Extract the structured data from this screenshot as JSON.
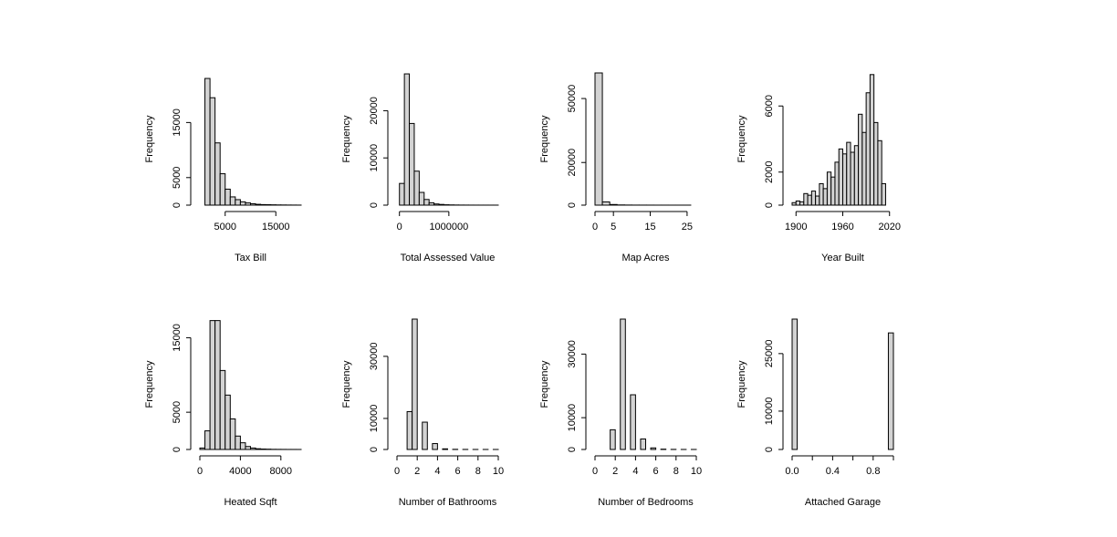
{
  "figure": {
    "background": "#ffffff",
    "bar_fill": "#d3d3d3",
    "bar_stroke": "#000000"
  },
  "chart_data": [
    {
      "type": "bar",
      "xlabel": "Tax Bill",
      "ylabel": "Frequency",
      "xlim": [
        0,
        20000
      ],
      "ylim": [
        0,
        24000
      ],
      "xticks": [
        5000,
        15000
      ],
      "xtick_labels": [
        "5000",
        "15000"
      ],
      "yticks": [
        0,
        5000,
        15000
      ],
      "ytick_labels": [
        "0",
        "5000",
        "15000"
      ],
      "bins": [
        [
          1000,
          2000
        ],
        [
          2000,
          3000
        ],
        [
          3000,
          4000
        ],
        [
          4000,
          5000
        ],
        [
          5000,
          6000
        ],
        [
          6000,
          7000
        ],
        [
          7000,
          8000
        ],
        [
          8000,
          9000
        ],
        [
          9000,
          10000
        ],
        [
          10000,
          11000
        ],
        [
          11000,
          12000
        ],
        [
          12000,
          13000
        ],
        [
          13000,
          14000
        ],
        [
          14000,
          15000
        ],
        [
          15000,
          16000
        ],
        [
          16000,
          17000
        ],
        [
          17000,
          18000
        ],
        [
          18000,
          19000
        ],
        [
          19000,
          20000
        ]
      ],
      "values": [
        23000,
        19500,
        11300,
        5700,
        2900,
        1500,
        1000,
        600,
        400,
        250,
        150,
        100,
        80,
        60,
        40,
        30,
        20,
        15,
        10
      ]
    },
    {
      "type": "bar",
      "xlabel": "Total Assessed Value",
      "ylabel": "Frequency",
      "xlim": [
        -50000,
        2000000
      ],
      "ylim": [
        0,
        28000
      ],
      "xticks": [
        0,
        1000000
      ],
      "xtick_labels": [
        "0",
        "1000000"
      ],
      "yticks": [
        0,
        10000,
        20000
      ],
      "ytick_labels": [
        "0",
        "10000",
        "20000"
      ],
      "bins": [
        [
          0,
          100000
        ],
        [
          100000,
          200000
        ],
        [
          200000,
          300000
        ],
        [
          300000,
          400000
        ],
        [
          400000,
          500000
        ],
        [
          500000,
          600000
        ],
        [
          600000,
          700000
        ],
        [
          700000,
          800000
        ],
        [
          800000,
          900000
        ],
        [
          900000,
          1000000
        ],
        [
          1000000,
          1100000
        ],
        [
          1100000,
          1200000
        ],
        [
          1200000,
          1300000
        ],
        [
          1300000,
          1400000
        ],
        [
          1400000,
          1500000
        ],
        [
          1500000,
          1600000
        ],
        [
          1600000,
          1700000
        ],
        [
          1700000,
          1800000
        ],
        [
          1800000,
          1900000
        ],
        [
          1900000,
          2000000
        ]
      ],
      "values": [
        4600,
        27800,
        17300,
        7200,
        2700,
        1200,
        500,
        250,
        150,
        80,
        50,
        30,
        20,
        15,
        10,
        8,
        6,
        5,
        4,
        3
      ]
    },
    {
      "type": "bar",
      "xlabel": "Map Acres",
      "ylabel": "Frequency",
      "xlim": [
        0,
        27.5
      ],
      "ylim": [
        0,
        62000
      ],
      "xticks": [
        0,
        5,
        15,
        25
      ],
      "xtick_labels": [
        "0",
        "5",
        "15",
        "25"
      ],
      "yticks": [
        0,
        20000,
        50000
      ],
      "ytick_labels": [
        "0",
        "20000",
        "50000"
      ],
      "bins": [
        [
          0,
          2
        ],
        [
          2,
          4
        ],
        [
          4,
          6
        ],
        [
          6,
          8
        ],
        [
          8,
          10
        ],
        [
          10,
          12
        ],
        [
          12,
          14
        ],
        [
          14,
          16
        ],
        [
          16,
          18
        ],
        [
          18,
          20
        ],
        [
          20,
          22
        ],
        [
          22,
          24
        ],
        [
          24,
          26
        ],
        [
          26,
          28
        ]
      ],
      "values": [
        62000,
        1500,
        300,
        100,
        50,
        30,
        20,
        15,
        10,
        8,
        5,
        4,
        3,
        2
      ]
    },
    {
      "type": "bar",
      "xlabel": "Year Built",
      "ylabel": "Frequency",
      "xlim": [
        1895,
        2025
      ],
      "ylim": [
        0,
        8000
      ],
      "xticks": [
        1900,
        1960,
        2020
      ],
      "xtick_labels": [
        "1900",
        "1960",
        "2020"
      ],
      "yticks": [
        0,
        2000,
        6000
      ],
      "ytick_labels": [
        "0",
        "2000",
        "6000"
      ],
      "bins": [
        [
          1895,
          1900
        ],
        [
          1900,
          1905
        ],
        [
          1905,
          1910
        ],
        [
          1910,
          1915
        ],
        [
          1915,
          1920
        ],
        [
          1920,
          1925
        ],
        [
          1925,
          1930
        ],
        [
          1930,
          1935
        ],
        [
          1935,
          1940
        ],
        [
          1940,
          1945
        ],
        [
          1945,
          1950
        ],
        [
          1950,
          1955
        ],
        [
          1955,
          1960
        ],
        [
          1960,
          1965
        ],
        [
          1965,
          1970
        ],
        [
          1970,
          1975
        ],
        [
          1975,
          1980
        ],
        [
          1980,
          1985
        ],
        [
          1985,
          1990
        ],
        [
          1990,
          1995
        ],
        [
          1995,
          2000
        ],
        [
          2000,
          2005
        ],
        [
          2005,
          2010
        ],
        [
          2010,
          2015
        ],
        [
          2015,
          2020
        ],
        [
          2020,
          2025
        ]
      ],
      "values": [
        150,
        250,
        200,
        700,
        600,
        850,
        550,
        1300,
        1000,
        2000,
        1700,
        2600,
        3400,
        3100,
        3800,
        3200,
        3600,
        5500,
        4400,
        6800,
        7900,
        5000,
        3900,
        1300,
        0,
        0
      ]
    },
    {
      "type": "bar",
      "xlabel": "Heated Sqft",
      "ylabel": "Frequency",
      "xlim": [
        0,
        10000
      ],
      "ylim": [
        0,
        17500
      ],
      "xticks": [
        0,
        4000,
        8000
      ],
      "xtick_labels": [
        "0",
        "4000",
        "8000"
      ],
      "yticks": [
        0,
        5000,
        15000
      ],
      "ytick_labels": [
        "0",
        "5000",
        "15000"
      ],
      "bins": [
        [
          0,
          500
        ],
        [
          500,
          1000
        ],
        [
          1000,
          1500
        ],
        [
          1500,
          2000
        ],
        [
          2000,
          2500
        ],
        [
          2500,
          3000
        ],
        [
          3000,
          3500
        ],
        [
          3500,
          4000
        ],
        [
          4000,
          4500
        ],
        [
          4500,
          5000
        ],
        [
          5000,
          5500
        ],
        [
          5500,
          6000
        ],
        [
          6000,
          6500
        ],
        [
          6500,
          7000
        ],
        [
          7000,
          7500
        ],
        [
          7500,
          8000
        ],
        [
          8000,
          8500
        ],
        [
          8500,
          9000
        ],
        [
          9000,
          9500
        ],
        [
          9500,
          10000
        ]
      ],
      "values": [
        200,
        2500,
        17300,
        17300,
        10600,
        7300,
        4100,
        1800,
        900,
        400,
        200,
        100,
        60,
        40,
        20,
        15,
        10,
        5,
        5,
        3
      ]
    },
    {
      "type": "bar",
      "xlabel": "Number of Bathrooms",
      "ylabel": "Frequency",
      "xlim": [
        0,
        10
      ],
      "ylim": [
        0,
        42000
      ],
      "xticks": [
        0,
        2,
        4,
        6,
        8,
        10
      ],
      "xtick_labels": [
        "0",
        "2",
        "4",
        "6",
        "8",
        "10"
      ],
      "yticks": [
        0,
        10000,
        30000
      ],
      "ytick_labels": [
        "0",
        "10000",
        "30000"
      ],
      "bins": [
        [
          0,
          0.5
        ],
        [
          0.5,
          1
        ],
        [
          1,
          1.5
        ],
        [
          1.5,
          2
        ],
        [
          2,
          2.5
        ],
        [
          2.5,
          3
        ],
        [
          3,
          3.5
        ],
        [
          3.5,
          4
        ],
        [
          4,
          4.5
        ],
        [
          4.5,
          5
        ],
        [
          5,
          5.5
        ],
        [
          5.5,
          6
        ],
        [
          6,
          6.5
        ],
        [
          6.5,
          7
        ],
        [
          7,
          7.5
        ],
        [
          7.5,
          8
        ],
        [
          8,
          8.5
        ],
        [
          8.5,
          9
        ],
        [
          9,
          9.5
        ],
        [
          9.5,
          10
        ]
      ],
      "values": [
        0,
        0,
        12200,
        42000,
        0,
        8800,
        0,
        1900,
        0,
        200,
        0,
        50,
        0,
        20,
        0,
        10,
        0,
        5,
        0,
        3
      ]
    },
    {
      "type": "bar",
      "xlabel": "Number of Bedrooms",
      "ylabel": "Frequency",
      "xlim": [
        0,
        10
      ],
      "ylim": [
        0,
        41000
      ],
      "xticks": [
        0,
        2,
        4,
        6,
        8,
        10
      ],
      "xtick_labels": [
        "0",
        "2",
        "4",
        "6",
        "8",
        "10"
      ],
      "yticks": [
        0,
        10000,
        30000
      ],
      "ytick_labels": [
        "0",
        "10000",
        "30000"
      ],
      "bins": [
        [
          0,
          0.5
        ],
        [
          0.5,
          1
        ],
        [
          1,
          1.5
        ],
        [
          1.5,
          2
        ],
        [
          2,
          2.5
        ],
        [
          2.5,
          3
        ],
        [
          3,
          3.5
        ],
        [
          3.5,
          4
        ],
        [
          4,
          4.5
        ],
        [
          4.5,
          5
        ],
        [
          5,
          5.5
        ],
        [
          5.5,
          6
        ],
        [
          6,
          6.5
        ],
        [
          6.5,
          7
        ],
        [
          7,
          7.5
        ],
        [
          7.5,
          8
        ],
        [
          8,
          8.5
        ],
        [
          8.5,
          9
        ],
        [
          9,
          9.5
        ],
        [
          9.5,
          10
        ]
      ],
      "values": [
        0,
        0,
        0,
        6200,
        0,
        41000,
        0,
        17200,
        0,
        3300,
        0,
        500,
        0,
        100,
        0,
        30,
        0,
        10,
        0,
        5
      ]
    },
    {
      "type": "bar",
      "xlabel": "Attached Garage",
      "ylabel": "Frequency",
      "xlim": [
        0,
        1
      ],
      "ylim": [
        0,
        34000
      ],
      "xticks": [
        0,
        0.2,
        0.4,
        0.6,
        0.8,
        1.0
      ],
      "xtick_labels": [
        "0.0",
        "",
        "0.4",
        "",
        "0.8",
        ""
      ],
      "yticks": [
        0,
        10000,
        25000
      ],
      "ytick_labels": [
        "0",
        "10000",
        "25000"
      ],
      "bins": [
        [
          0,
          0.05
        ],
        [
          0.05,
          0.1
        ],
        [
          0.1,
          0.15
        ],
        [
          0.15,
          0.2
        ],
        [
          0.2,
          0.25
        ],
        [
          0.25,
          0.3
        ],
        [
          0.3,
          0.35
        ],
        [
          0.35,
          0.4
        ],
        [
          0.4,
          0.45
        ],
        [
          0.45,
          0.5
        ],
        [
          0.5,
          0.55
        ],
        [
          0.55,
          0.6
        ],
        [
          0.6,
          0.65
        ],
        [
          0.65,
          0.7
        ],
        [
          0.7,
          0.75
        ],
        [
          0.75,
          0.8
        ],
        [
          0.8,
          0.85
        ],
        [
          0.85,
          0.9
        ],
        [
          0.9,
          0.95
        ],
        [
          0.95,
          1.0
        ]
      ],
      "values": [
        34000,
        0,
        0,
        0,
        0,
        0,
        0,
        0,
        0,
        0,
        0,
        0,
        0,
        0,
        0,
        0,
        0,
        0,
        0,
        30400
      ]
    }
  ]
}
